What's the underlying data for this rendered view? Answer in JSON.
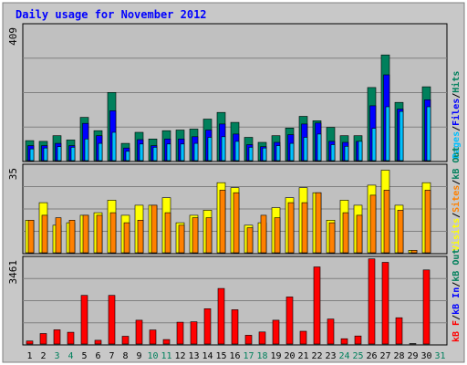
{
  "chart_data": {
    "type": "bar",
    "title": "Daily usage for November 2012",
    "categories": [
      "1",
      "2",
      "3",
      "4",
      "5",
      "6",
      "7",
      "8",
      "9",
      "10",
      "11",
      "12",
      "13",
      "14",
      "15",
      "16",
      "17",
      "18",
      "19",
      "20",
      "21",
      "22",
      "23",
      "24",
      "25",
      "26",
      "27",
      "28",
      "29",
      "30",
      "31"
    ],
    "weekend_days": [
      "3",
      "4",
      "10",
      "11",
      "17",
      "18",
      "24",
      "25",
      "31"
    ],
    "colors": {
      "hits": "#00805c",
      "files": "#0000ff",
      "pages": "#00c0ff",
      "visits": "#ffff00",
      "sites": "#ff8000",
      "kbin": "#ff0000",
      "weekend_label": "#00805c",
      "weekday_label": "#000000",
      "title": "#0000ff"
    },
    "panels": [
      {
        "id": "top",
        "ymax_label": "409",
        "ylim": [
          0,
          409
        ],
        "legend": [
          {
            "text": "Pages",
            "color": "#00c0ff"
          },
          {
            "text": "Files",
            "color": "#0000ff"
          },
          {
            "text": "Hits",
            "color": "#00805c"
          }
        ],
        "series": [
          {
            "name": "Hits",
            "values": [
              60,
              58,
              75,
              62,
              130,
              90,
              205,
              52,
              85,
              65,
              90,
              92,
              95,
              125,
              145,
              115,
              70,
              55,
              75,
              98,
              133,
              120,
              100,
              75,
              75,
              220,
              318,
              175,
              0,
              222,
              0
            ]
          },
          {
            "name": "Files",
            "values": [
              45,
              45,
              52,
              45,
              112,
              75,
              150,
              38,
              63,
              45,
              65,
              65,
              72,
              92,
              110,
              80,
              48,
              42,
              55,
              78,
              110,
              113,
              58,
              55,
              58,
              165,
              258,
              155,
              0,
              183,
              0
            ]
          },
          {
            "name": "Pages",
            "values": [
              35,
              38,
              42,
              40,
              65,
              52,
              85,
              28,
              50,
              40,
              50,
              50,
              52,
              70,
              72,
              58,
              40,
              38,
              45,
              52,
              70,
              80,
              48,
              43,
              58,
              97,
              162,
              148,
              0,
              162,
              0
            ]
          }
        ]
      },
      {
        "id": "middle",
        "ymax_label": "35",
        "ylim": [
          0,
          35
        ],
        "legend": [
          {
            "text": "Visits",
            "color": "#ffff00"
          },
          {
            "text": "Sites",
            "color": "#ff8000"
          },
          {
            "text": "kB Out",
            "color": "#00805c"
          }
        ],
        "series": [
          {
            "name": "Visits",
            "values": [
              13,
              20,
              11,
              12,
              15,
              16,
              21,
              15,
              19,
              19,
              22,
              12,
              15,
              17,
              28,
              26,
              11,
              12,
              18,
              22,
              26,
              24,
              13,
              21,
              19,
              27,
              33,
              19,
              1,
              28,
              0
            ]
          },
          {
            "name": "Sites",
            "values": [
              13,
              15,
              14,
              13,
              15,
              15,
              16,
              12,
              13,
              19,
              16,
              11,
              14,
              14,
              25,
              24,
              10,
              15,
              14,
              20,
              20,
              24,
              12,
              16,
              15,
              23,
              25,
              17,
              1,
              25,
              0
            ]
          }
        ]
      },
      {
        "id": "bottom",
        "ymax_label": "3461",
        "ylim": [
          0,
          3461
        ],
        "legend": [
          {
            "text": "kB F",
            "color": "#ff0000"
          },
          {
            "text": "kB In",
            "color": "#0000ff"
          },
          {
            "text": "kB Out",
            "color": "#00805c"
          }
        ],
        "series": [
          {
            "name": "kB F",
            "values": [
              120,
              420,
              570,
              470,
              1940,
              150,
              1940,
              310,
              950,
              560,
              180,
              870,
              890,
              1410,
              2220,
              1370,
              350,
              480,
              950,
              1880,
              510,
              3080,
              1000,
              210,
              320,
              3400,
              3260,
              1050,
              20,
              2960,
              0
            ]
          }
        ]
      }
    ]
  }
}
